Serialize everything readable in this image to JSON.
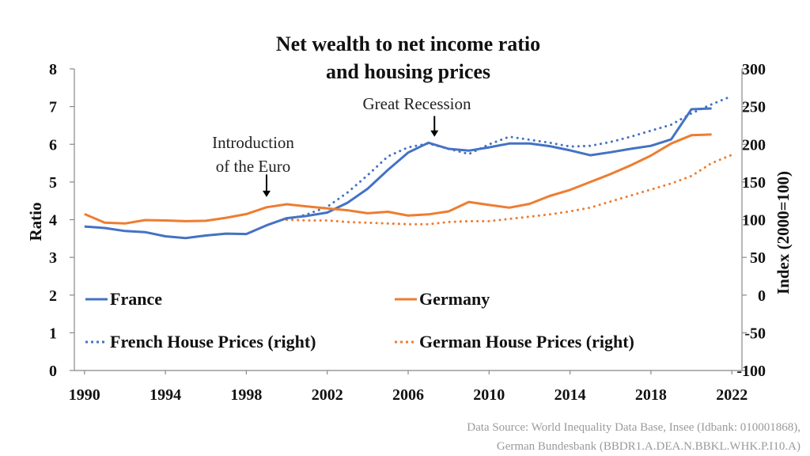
{
  "chart_data": {
    "type": "line",
    "title_line1": "Net wealth to net income ratio",
    "title_line2": "and housing prices",
    "xlim": [
      1989.5,
      2022.5
    ],
    "ylim_left": [
      0,
      8
    ],
    "ylim_right": [
      -100,
      300
    ],
    "ylabel_left": "Ratio",
    "ylabel_right": "Index (2000=100)",
    "x_ticks": [
      "1990",
      "1994",
      "1998",
      "2002",
      "2006",
      "2010",
      "2014",
      "2018",
      "2022"
    ],
    "x_tick_values": [
      1990,
      1994,
      1998,
      2002,
      2006,
      2010,
      2014,
      2018,
      2022
    ],
    "y_left_ticks": [
      "0",
      "1",
      "2",
      "3",
      "4",
      "5",
      "6",
      "7",
      "8"
    ],
    "y_left_tick_values": [
      0,
      1,
      2,
      3,
      4,
      5,
      6,
      7,
      8
    ],
    "y_right_ticks": [
      "-100",
      "-50",
      "0",
      "50",
      "100",
      "150",
      "200",
      "250",
      "300"
    ],
    "y_right_tick_values": [
      -100,
      -50,
      0,
      50,
      100,
      150,
      200,
      250,
      300
    ],
    "series": [
      {
        "name": "France",
        "axis": "left",
        "style": "solid",
        "color": "#4472C4",
        "x": [
          1990,
          1991,
          1992,
          1993,
          1994,
          1995,
          1996,
          1997,
          1998,
          1999,
          2000,
          2001,
          2002,
          2003,
          2004,
          2005,
          2006,
          2007,
          2008,
          2009,
          2010,
          2011,
          2012,
          2013,
          2014,
          2015,
          2016,
          2017,
          2018,
          2019,
          2020,
          2021
        ],
        "values": [
          3.82,
          3.78,
          3.7,
          3.67,
          3.56,
          3.51,
          3.58,
          3.63,
          3.62,
          3.85,
          4.04,
          4.1,
          4.19,
          4.45,
          4.82,
          5.32,
          5.78,
          6.04,
          5.88,
          5.83,
          5.92,
          6.02,
          6.02,
          5.95,
          5.84,
          5.71,
          5.79,
          5.88,
          5.96,
          6.13,
          6.93,
          6.95
        ]
      },
      {
        "name": "Germany",
        "axis": "left",
        "style": "solid",
        "color": "#ED7D31",
        "x": [
          1990,
          1991,
          1992,
          1993,
          1994,
          1995,
          1996,
          1997,
          1998,
          1999,
          2000,
          2001,
          2002,
          2003,
          2004,
          2005,
          2006,
          2007,
          2008,
          2009,
          2010,
          2011,
          2012,
          2013,
          2014,
          2015,
          2016,
          2017,
          2018,
          2019,
          2020,
          2021
        ],
        "values": [
          4.15,
          3.92,
          3.9,
          3.99,
          3.98,
          3.96,
          3.97,
          4.05,
          4.15,
          4.33,
          4.41,
          4.35,
          4.3,
          4.25,
          4.17,
          4.21,
          4.11,
          4.14,
          4.22,
          4.47,
          4.39,
          4.32,
          4.42,
          4.63,
          4.79,
          5.0,
          5.21,
          5.44,
          5.7,
          6.02,
          6.24,
          6.26
        ]
      },
      {
        "name": "French House Prices (right)",
        "axis": "right",
        "style": "dotted",
        "color": "#4472C4",
        "x": [
          2000,
          2001,
          2002,
          2003,
          2004,
          2005,
          2006,
          2007,
          2008,
          2009,
          2010,
          2011,
          2012,
          2013,
          2014,
          2015,
          2016,
          2017,
          2018,
          2019,
          2020,
          2021,
          2022
        ],
        "values": [
          100,
          107,
          117,
          136,
          159,
          184,
          196,
          201,
          194,
          187,
          200,
          210,
          206,
          202,
          197,
          198,
          203,
          210,
          218,
          226,
          241,
          253,
          264
        ]
      },
      {
        "name": "German House Prices (right)",
        "axis": "right",
        "style": "dotted",
        "color": "#ED7D31",
        "x": [
          2000,
          2001,
          2002,
          2003,
          2004,
          2005,
          2006,
          2007,
          2008,
          2009,
          2010,
          2011,
          2012,
          2013,
          2014,
          2015,
          2016,
          2017,
          2018,
          2019,
          2020,
          2021,
          2022
        ],
        "values": [
          100,
          99,
          99,
          97,
          96,
          95,
          94,
          94,
          97,
          98,
          98,
          101,
          104,
          107,
          111,
          116,
          124,
          132,
          140,
          148,
          158,
          175,
          186
        ]
      }
    ],
    "legend": [
      {
        "label": "France",
        "style": "solid",
        "color": "#4472C4"
      },
      {
        "label": "Germany",
        "style": "solid",
        "color": "#ED7D31"
      },
      {
        "label": "French House Prices (right)",
        "style": "dotted",
        "color": "#4472C4"
      },
      {
        "label": "German House Prices (right)",
        "style": "dotted",
        "color": "#ED7D31"
      }
    ],
    "annotations": [
      {
        "line1": "Introduction",
        "line2": "of  the Euro",
        "arrow_x": 1999,
        "arrow_from": 5.2,
        "arrow_to": 4.6
      },
      {
        "line1": "Great Recession",
        "line2": "",
        "arrow_x": 2007.3,
        "arrow_from": 6.75,
        "arrow_to": 6.2
      }
    ],
    "source_line1": "Data Source: World Inequality Data Base, Insee (Idbank: 010001868),",
    "source_line2": "German Bundesbank (BBDR1.A.DEA.N.BBKL.WHK.P.I10.A)"
  }
}
